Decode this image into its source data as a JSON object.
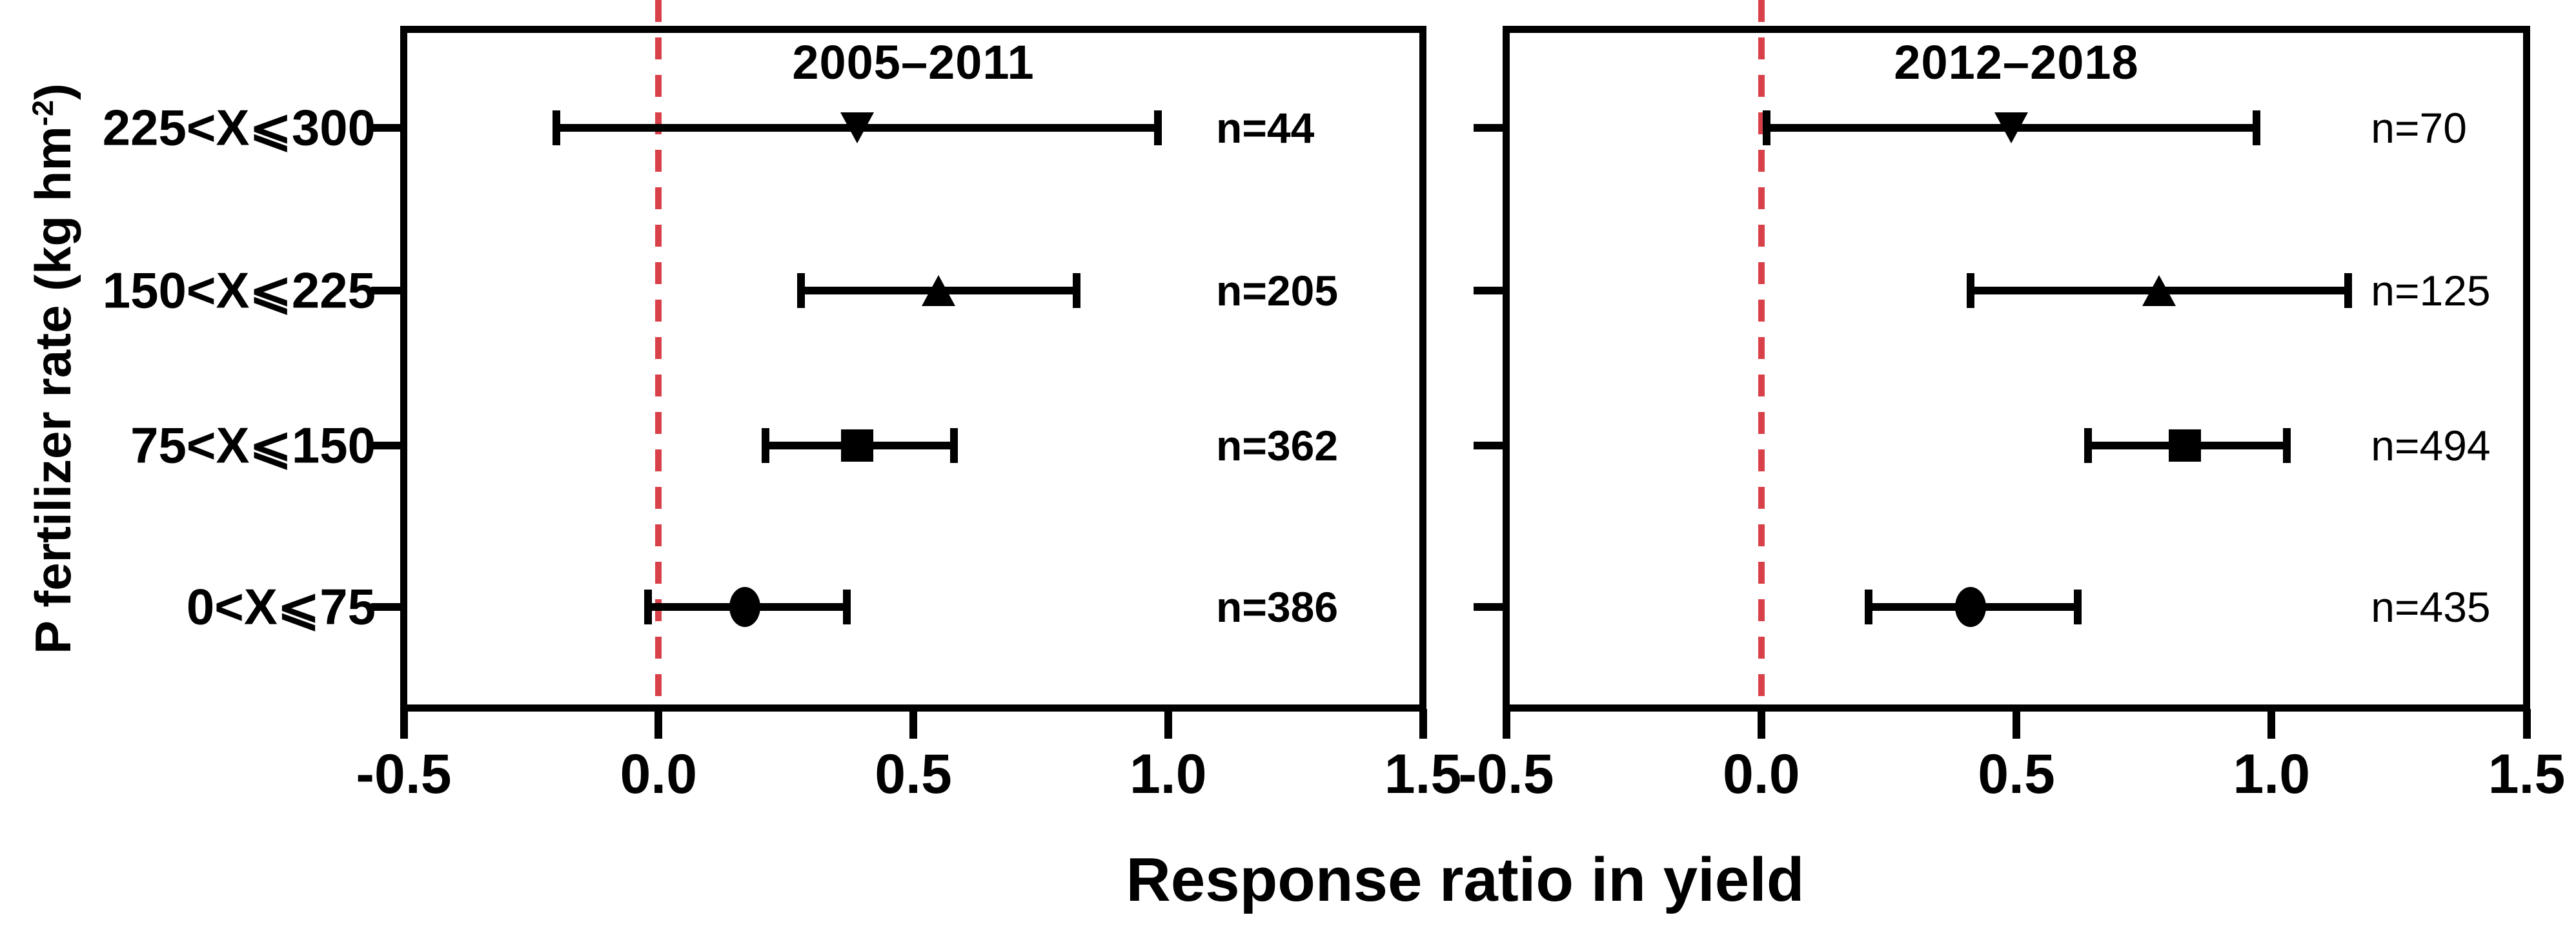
{
  "figure": {
    "x_axis_label": "Response ratio in yield",
    "y_axis_label": {
      "text": "P fertilizer rate (kg hm",
      "superscript": "-2",
      "suffix": ")"
    },
    "colors": {
      "zero_line": "#d9414a",
      "axis": "#000000",
      "background": "#ffffff"
    }
  },
  "chart_data": [
    {
      "type": "scatter",
      "subtype": "forest-plot",
      "title": "2005–2011",
      "orientation": "horizontal",
      "categories": [
        "225<X⩽300",
        "150<X⩽225",
        "75<X⩽150",
        "0<X⩽75"
      ],
      "xlabel": "Response ratio in yield",
      "ylabel": "P fertilizer rate (kg hm-2)",
      "xlim": [
        -0.5,
        1.5
      ],
      "xticks": [
        "-0.5",
        "0.0",
        "0.5",
        "1.0",
        "1.5"
      ],
      "zero_line": 0.0,
      "grid": false,
      "n_label_weight": "bold",
      "points": [
        {
          "category": "225<X⩽300",
          "mean": 0.39,
          "ci_low": -0.2,
          "ci_high": 0.98,
          "marker": "triangle-down",
          "n_label": "n=44"
        },
        {
          "category": "150<X⩽225",
          "mean": 0.55,
          "ci_low": 0.28,
          "ci_high": 0.82,
          "marker": "triangle-up",
          "n_label": "n=205"
        },
        {
          "category": "75<X⩽150",
          "mean": 0.39,
          "ci_low": 0.21,
          "ci_high": 0.58,
          "marker": "square",
          "n_label": "n=362"
        },
        {
          "category": "0<X⩽75",
          "mean": 0.17,
          "ci_low": -0.02,
          "ci_high": 0.37,
          "marker": "circle",
          "n_label": "n=386"
        }
      ]
    },
    {
      "type": "scatter",
      "subtype": "forest-plot",
      "title": "2012–2018",
      "orientation": "horizontal",
      "categories": [
        "225<X⩽300",
        "150<X⩽225",
        "75<X⩽150",
        "0<X⩽75"
      ],
      "xlabel": "Response ratio in yield",
      "ylabel": "P fertilizer rate (kg hm-2)",
      "xlim": [
        -0.5,
        1.5
      ],
      "xticks": [
        "-0.5",
        "0.0",
        "0.5",
        "1.0",
        "1.5"
      ],
      "zero_line": 0.0,
      "grid": false,
      "n_label_weight": "normal",
      "points": [
        {
          "category": "225<X⩽300",
          "mean": 0.49,
          "ci_low": 0.01,
          "ci_high": 0.97,
          "marker": "triangle-down",
          "n_label": "n=70"
        },
        {
          "category": "150<X⩽225",
          "mean": 0.78,
          "ci_low": 0.41,
          "ci_high": 1.15,
          "marker": "triangle-up",
          "n_label": "n=125"
        },
        {
          "category": "75<X⩽150",
          "mean": 0.83,
          "ci_low": 0.64,
          "ci_high": 1.03,
          "marker": "square",
          "n_label": "n=494"
        },
        {
          "category": "0<X⩽75",
          "mean": 0.41,
          "ci_low": 0.21,
          "ci_high": 0.62,
          "marker": "circle",
          "n_label": "n=435"
        }
      ]
    }
  ]
}
